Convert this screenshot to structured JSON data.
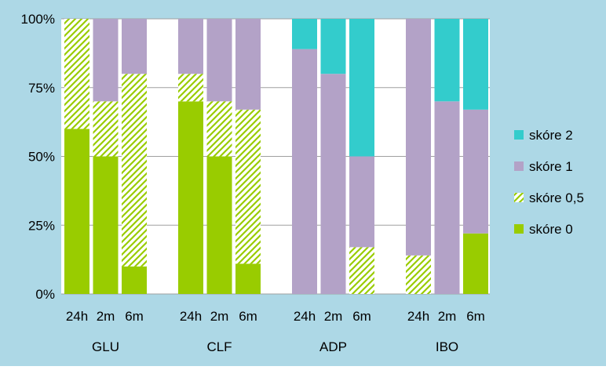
{
  "colors": {
    "background": "#add8e6",
    "plot_background": "#ffffff",
    "skore_0": "#99cc00",
    "skore_05_hatch": "#99cc00",
    "skore_1": "#b3a2c7",
    "skore_2": "#33cccc",
    "gridline": "#a0a0a0",
    "text": "#000000"
  },
  "chart_data": {
    "type": "bar",
    "stacked": "percent",
    "title": "",
    "xlabel": "",
    "ylabel": "",
    "ylim": [
      0,
      100
    ],
    "y_ticks": [
      "0%",
      "25%",
      "50%",
      "75%",
      "100%"
    ],
    "grid": true,
    "legend_position": "right",
    "groups": [
      "GLU",
      "CLF",
      "ADP",
      "IBO"
    ],
    "categories": [
      "24h",
      "2m",
      "6m"
    ],
    "series": [
      {
        "name": "skóre 0",
        "pattern": "solid",
        "values": [
          [
            60,
            50,
            10
          ],
          [
            70,
            50,
            11
          ],
          [
            0,
            0,
            0
          ],
          [
            0,
            0,
            22
          ]
        ]
      },
      {
        "name": "skóre 0,5",
        "pattern": "diagonal-hatch",
        "values": [
          [
            40,
            20,
            70
          ],
          [
            10,
            20,
            56
          ],
          [
            0,
            0,
            17
          ],
          [
            14,
            0,
            0
          ]
        ]
      },
      {
        "name": "skóre 1",
        "pattern": "solid",
        "values": [
          [
            0,
            30,
            20
          ],
          [
            20,
            30,
            33
          ],
          [
            89,
            80,
            33
          ],
          [
            86,
            70,
            45
          ]
        ]
      },
      {
        "name": "skóre 2",
        "pattern": "solid",
        "values": [
          [
            0,
            0,
            0
          ],
          [
            0,
            0,
            0
          ],
          [
            11,
            20,
            50
          ],
          [
            0,
            30,
            33
          ]
        ]
      }
    ],
    "legend_order": [
      "skóre 2",
      "skóre 1",
      "skóre 0,5",
      "skóre 0"
    ]
  }
}
